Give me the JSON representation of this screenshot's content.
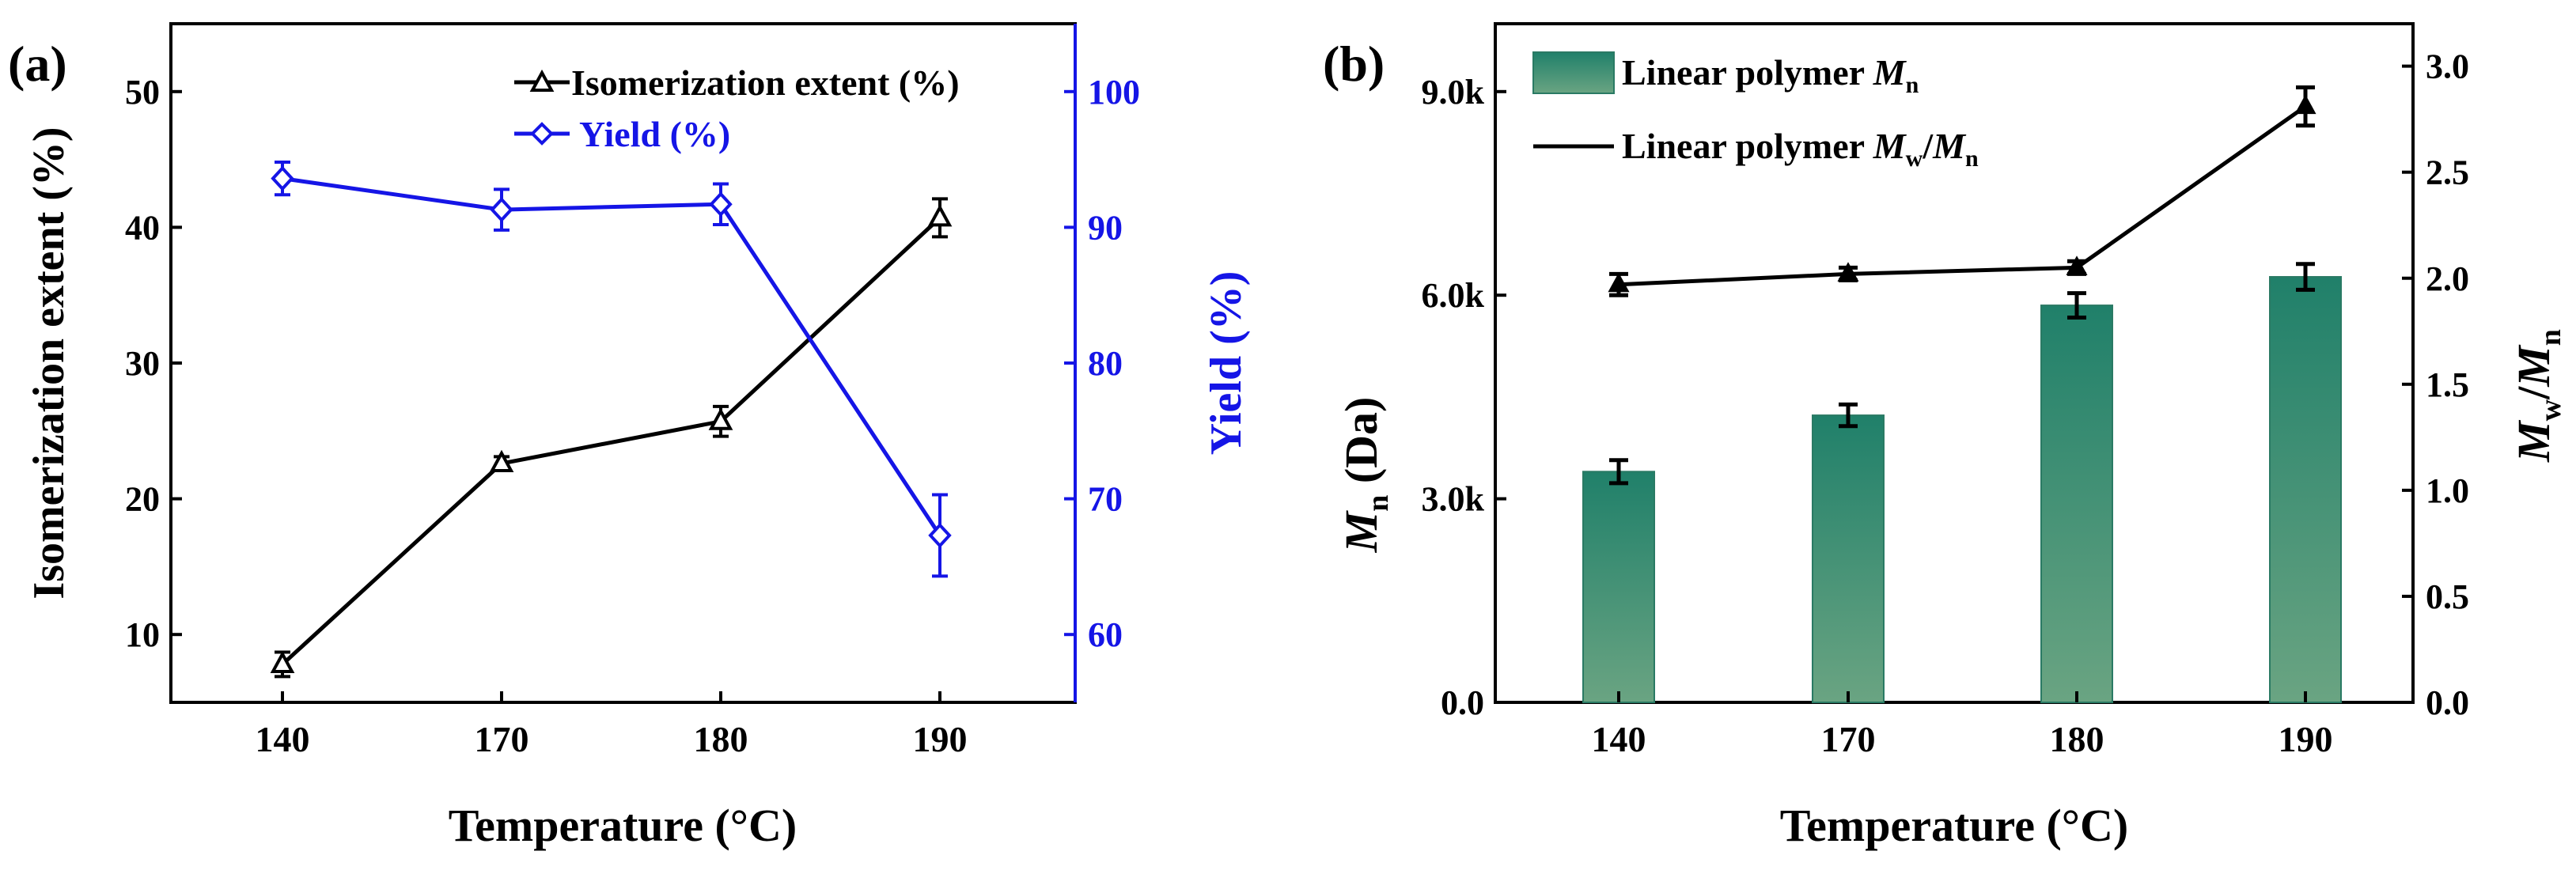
{
  "chart_data": [
    {
      "panel_label": "(a)",
      "type": "line",
      "categories": [
        "140",
        "170",
        "180",
        "190"
      ],
      "xlabel": "Temperature (°C)",
      "ylabel": "Isomerization extent (%)",
      "y2label": "Yield (%)",
      "ylim": [
        5,
        55
      ],
      "y2lim": [
        55,
        105
      ],
      "yticks": [
        10,
        20,
        30,
        40,
        50
      ],
      "y2ticks": [
        60,
        70,
        80,
        90,
        100
      ],
      "series": [
        {
          "name": "Isomerization extent (%)",
          "axis": "left",
          "color": "#000000",
          "marker": "triangle",
          "values": [
            7.8,
            22.6,
            25.7,
            40.7
          ],
          "errors": [
            0.9,
            0.5,
            1.1,
            1.4
          ]
        },
        {
          "name": "Yield (%)",
          "axis": "right",
          "color": "#1515e6",
          "marker": "diamond",
          "values": [
            93.6,
            91.3,
            91.7,
            67.3
          ],
          "errors": [
            1.2,
            1.5,
            1.5,
            3.0
          ]
        }
      ]
    },
    {
      "panel_label": "(b)",
      "type": "bar",
      "categories": [
        "140",
        "170",
        "180",
        "190"
      ],
      "xlabel": "Temperature (°C)",
      "ylabel_main": "M",
      "ylabel_sub": "n",
      "ylabel_suffix": " (Da)",
      "y2label_main1": "M",
      "y2label_sub1": "w",
      "y2label_mid": "/",
      "y2label_main2": "M",
      "y2label_sub2": "n",
      "ylim": [
        0,
        10000
      ],
      "y2lim": [
        0,
        3.2
      ],
      "yticks": [
        {
          "value": 0,
          "label": "0.0"
        },
        {
          "value": 3000,
          "label": "3.0k"
        },
        {
          "value": 6000,
          "label": "6.0k"
        },
        {
          "value": 9000,
          "label": "9.0k"
        }
      ],
      "y2ticks": [
        "0.0",
        "0.5",
        "1.0",
        "1.5",
        "2.0",
        "2.5",
        "3.0"
      ],
      "bars": {
        "name": "Linear polymer Mn",
        "color_top": "#20806a",
        "color_bottom": "#6aa482",
        "values": [
          3400,
          4230,
          5850,
          6270
        ],
        "errors": [
          170,
          160,
          180,
          190
        ]
      },
      "line": {
        "name": "Linear polymer Mw/Mn",
        "color": "#000000",
        "values": [
          1.97,
          2.02,
          2.05,
          2.81
        ],
        "errors": [
          0.05,
          0.03,
          0.03,
          0.09
        ]
      },
      "legend": {
        "bars_label": "Linear polymer ",
        "bars_italic": "M",
        "bars_sub": "n",
        "line_label": "Linear polymer ",
        "line_italic1": "M",
        "line_sub1": "w",
        "line_slash": "/",
        "line_italic2": "M",
        "line_sub2": "n"
      }
    }
  ]
}
